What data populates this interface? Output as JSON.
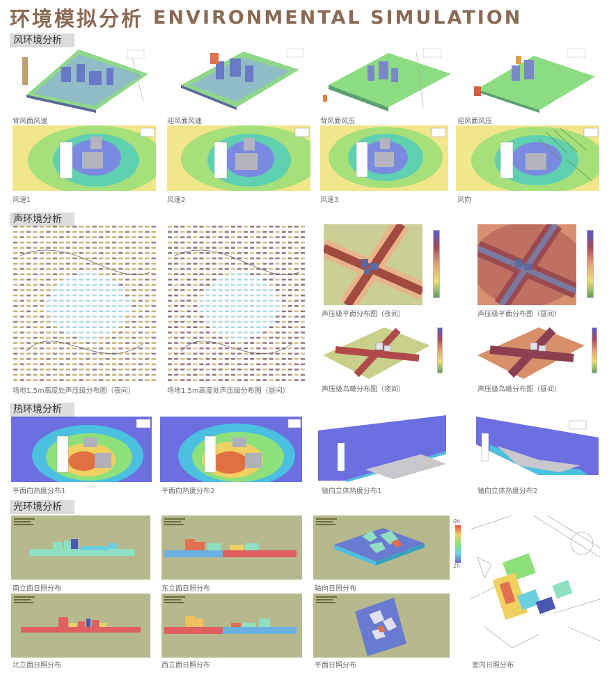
{
  "title": {
    "cn": "环境模拟分析",
    "en": "ENVIRONMENTAL SIMULATION"
  },
  "sections": {
    "wind": "风环境分析",
    "sound": "声环境分析",
    "heat": "热环境分析",
    "light": "光环境分析"
  },
  "captions": {
    "wind_leeward_speed": "背风面风速",
    "wind_windward_speed": "迎风面风速",
    "wind_leeward_pressure": "背风面风压",
    "wind_windward_pressure": "迎风面风压",
    "wind_speed1": "风速1",
    "wind_speed2": "风速2",
    "wind_speed3": "风速3",
    "wind_direction": "风向",
    "sound_site_night": "场地1.5m高度处声压级分布图（夜间）",
    "sound_site_day": "场地1.5m高度处声压级分布图（昼间）",
    "sound_plan_night": "声压级平面分布图（夜间）",
    "sound_plan_day": "声压级平面分布图（昼间）",
    "sound_aerial_night": "声压级鸟瞰分布图（夜间）",
    "sound_aerial_day": "声压级鸟瞰分布图（昼间）",
    "heat_plan1": "平面向热度分布1",
    "heat_plan2": "平面向热度分布2",
    "heat_axial1": "轴向立体热度分布1",
    "heat_axial2": "轴向立体热度分布2",
    "light_south": "南立面日照分布",
    "light_east": "东立面日照分布",
    "light_axial": "轴向日照分布",
    "light_north": "北立面日照分布",
    "light_west": "西立面日照分布",
    "light_plan": "平面日照分布",
    "light_indoor": "室内日照分布"
  },
  "legend_labels": {
    "top": "0h",
    "bottom": "2h"
  },
  "colors": {
    "title": "#8a6a55",
    "section_bg": "#dcdcdc",
    "olive_bg": "#b6b98d",
    "heat_blue": "#6c6fe0",
    "green": "#8ee07a"
  }
}
